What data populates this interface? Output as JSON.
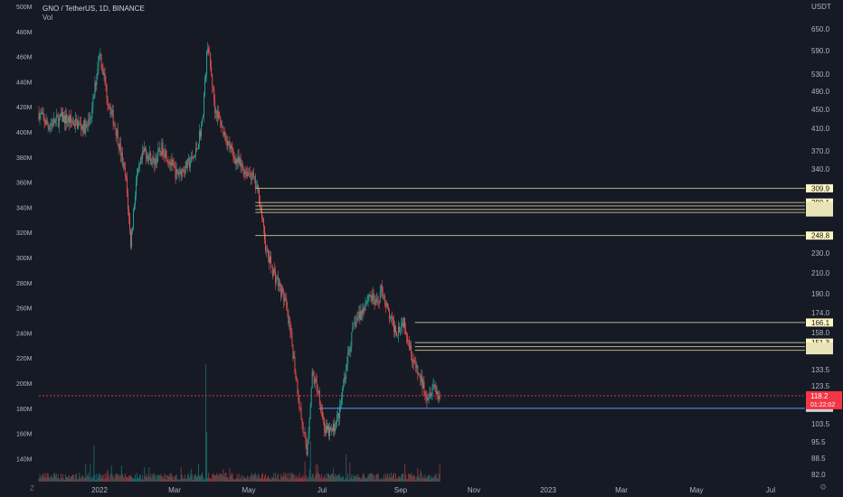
{
  "header": {
    "symbol": "GNO / TetherUS, 1D, BINANCE",
    "vol_label": "Vol"
  },
  "price_axis": {
    "unit": "USDT",
    "ticks": [
      "650.0",
      "590.0",
      "530.0",
      "490.0",
      "450.0",
      "410.0",
      "370.0",
      "340.0",
      "309.9",
      "290.1",
      "248.8",
      "230.0",
      "210.0",
      "190.0",
      "174.0",
      "166.1",
      "158.0",
      "151.3",
      "133.5",
      "123.5",
      "118.2",
      "103.5",
      "95.5",
      "88.5",
      "82.0"
    ]
  },
  "volume_axis": {
    "ticks": [
      "500M",
      "480M",
      "460M",
      "440M",
      "420M",
      "400M",
      "380M",
      "360M",
      "340M",
      "320M",
      "300M",
      "280M",
      "260M",
      "240M",
      "220M",
      "200M",
      "180M",
      "160M",
      "140M"
    ]
  },
  "time_axis": {
    "ticks": [
      "2022",
      "Mar",
      "May",
      "Jul",
      "Sep",
      "Nov",
      "2023",
      "Mar",
      "May",
      "Jul"
    ]
  },
  "current_price": {
    "value": "118.2",
    "countdown": "01:22:02",
    "color": "#f23645"
  },
  "levels": [
    {
      "label": "309.9",
      "price": 309.9,
      "highlight": true
    },
    {
      "label": "290.1",
      "price": 290.1,
      "highlight": true
    },
    {
      "label": "",
      "price": 285.5,
      "highlight": false
    },
    {
      "label": "",
      "price": 281.0,
      "highlight": false
    },
    {
      "label": "",
      "price": 277.0,
      "highlight": false
    },
    {
      "label": "248.8",
      "price": 248.8,
      "highlight": true
    },
    {
      "label": "166.1",
      "price": 166.1,
      "highlight": true
    },
    {
      "label": "151.3",
      "price": 151.3,
      "highlight": true
    },
    {
      "label": "",
      "price": 148.5,
      "highlight": false
    },
    {
      "label": "",
      "price": 146.0,
      "highlight": false
    }
  ],
  "support_level": {
    "price": 111.5,
    "color": "#5b9cf6"
  },
  "colors": {
    "up": "#26a69a",
    "down": "#ef5350",
    "level": "#b8b38a",
    "highlight_bg": "#fff7c2"
  }
}
